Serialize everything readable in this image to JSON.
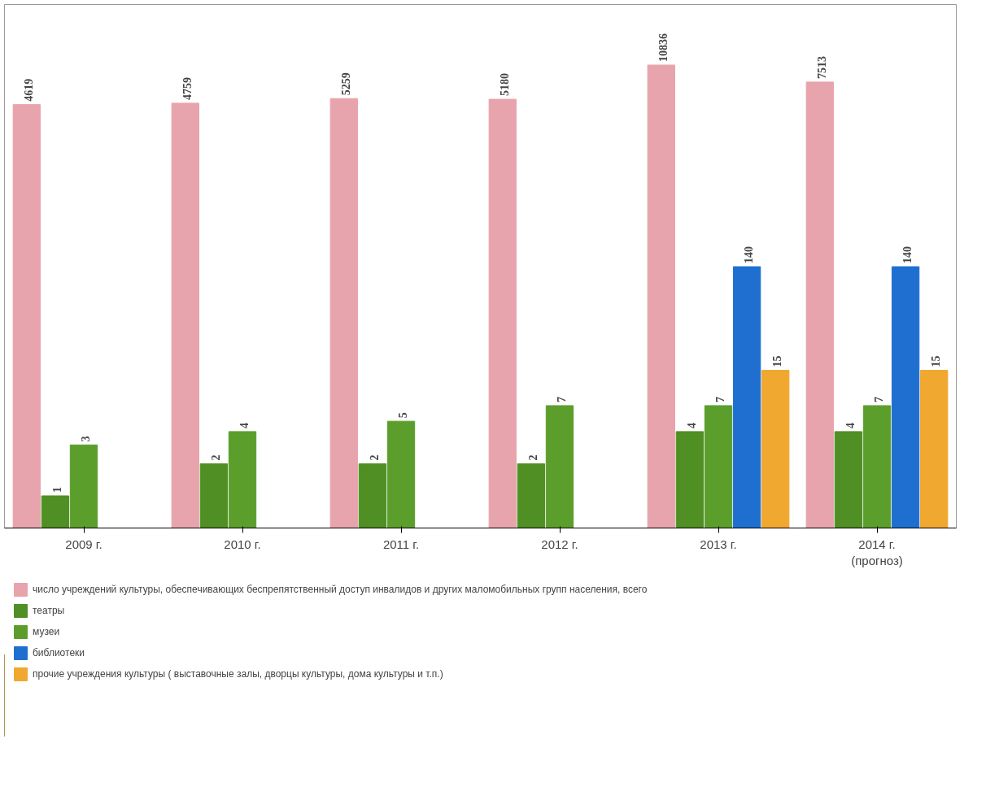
{
  "chart_data": {
    "type": "bar",
    "categories": [
      "2009 г.",
      "2010 г.",
      "2011 г.",
      "2012 г.",
      "2013 г.",
      "2014 г.\n(прогноз)"
    ],
    "series": [
      {
        "name": "число учреждений культуры, обеспечивающих беспрепятственный доступ инвалидов и других маломобильных групп населения, всего",
        "color": "#e8a4ac",
        "values": [
          4619,
          4759,
          5259,
          5180,
          10836,
          7513
        ]
      },
      {
        "name": "театры",
        "color": "#4f8f23",
        "values": [
          1,
          2,
          2,
          2,
          4,
          4
        ]
      },
      {
        "name": "музеи",
        "color": "#5c9e2c",
        "values": [
          3,
          4,
          5,
          7,
          7,
          7
        ]
      },
      {
        "name": "библиотеки",
        "color": "#1f6fd0",
        "values": [
          null,
          null,
          null,
          null,
          140,
          140
        ]
      },
      {
        "name": "прочие учреждения культуры ( выставочные залы, дворцы культуры, дома культуры и т.п.)",
        "color": "#f0a830",
        "values": [
          null,
          null,
          null,
          null,
          15,
          15
        ]
      }
    ],
    "ylim": [
      0.5,
      40000
    ],
    "log": true,
    "data_labels": true,
    "legend": "bottom",
    "tick_labels": "x"
  }
}
